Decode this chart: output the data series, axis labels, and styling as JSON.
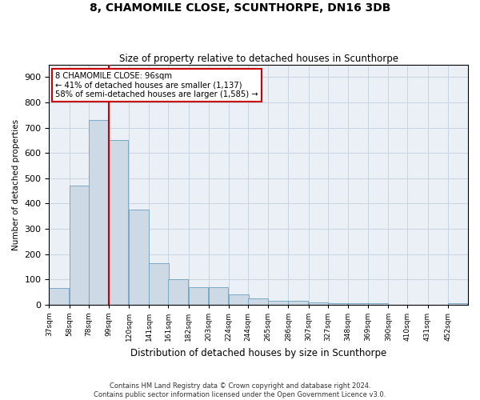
{
  "title": "8, CHAMOMILE CLOSE, SCUNTHORPE, DN16 3DB",
  "subtitle": "Size of property relative to detached houses in Scunthorpe",
  "xlabel": "Distribution of detached houses by size in Scunthorpe",
  "ylabel": "Number of detached properties",
  "footnote": "Contains HM Land Registry data © Crown copyright and database right 2024.\nContains public sector information licensed under the Open Government Licence v3.0.",
  "property_size": 96,
  "annotation_line1": "8 CHAMOMILE CLOSE: 96sqm",
  "annotation_line2": "← 41% of detached houses are smaller (1,137)",
  "annotation_line3": "58% of semi-detached houses are larger (1,585) →",
  "bar_color": "#cdd9e5",
  "bar_edge_color": "#6a9fc0",
  "line_color": "#cc0000",
  "grid_color": "#c8d4e0",
  "bg_color": "#eaf0f6",
  "bins": [
    37,
    58,
    78,
    99,
    120,
    141,
    161,
    182,
    203,
    224,
    244,
    265,
    286,
    307,
    327,
    348,
    369,
    390,
    410,
    431,
    452
  ],
  "values": [
    65,
    470,
    730,
    650,
    375,
    165,
    100,
    70,
    70,
    40,
    25,
    15,
    15,
    10,
    5,
    5,
    5,
    0,
    0,
    0,
    5
  ],
  "ylim": [
    0,
    950
  ],
  "yticks": [
    0,
    100,
    200,
    300,
    400,
    500,
    600,
    700,
    800,
    900
  ],
  "bin_width": 21
}
